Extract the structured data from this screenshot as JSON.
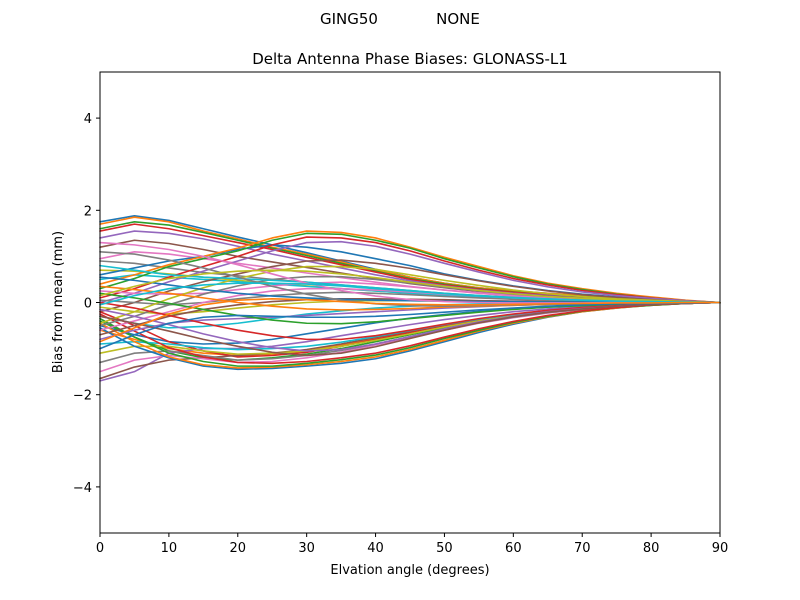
{
  "figure": {
    "suptitle_left": "GING50",
    "suptitle_right": "NONE"
  },
  "chart_data": {
    "type": "line",
    "title": "Delta Antenna Phase Biases: GLONASS-L1",
    "xlabel": "Elvation angle (degrees)",
    "ylabel": "Bias from mean (mm)",
    "xlim": [
      0,
      90
    ],
    "ylim": [
      -5,
      5
    ],
    "xticks": [
      0,
      10,
      20,
      30,
      40,
      50,
      60,
      70,
      80,
      90
    ],
    "yticks": [
      -4,
      -2,
      0,
      2,
      4
    ],
    "ytick_labels": [
      "−4",
      "−2",
      "0",
      "2",
      "4"
    ],
    "grid": false,
    "legend": "none",
    "palette": [
      "#1f77b4",
      "#ff7f0e",
      "#2ca02c",
      "#d62728",
      "#9467bd",
      "#8c564b",
      "#e377c2",
      "#7f7f7f",
      "#bcbd22",
      "#17becf"
    ],
    "x": [
      0,
      5,
      10,
      15,
      20,
      25,
      30,
      35,
      40,
      45,
      50,
      55,
      60,
      65,
      70,
      75,
      80,
      85,
      90
    ],
    "series": [
      {
        "values": [
          1.75,
          1.88,
          1.78,
          1.6,
          1.42,
          1.25,
          1.08,
          0.9,
          0.72,
          0.55,
          0.42,
          0.32,
          0.25,
          0.2,
          0.15,
          0.1,
          0.06,
          0.03,
          0.0
        ]
      },
      {
        "values": [
          1.7,
          1.85,
          1.75,
          1.55,
          1.38,
          1.2,
          1.05,
          0.88,
          0.7,
          0.55,
          0.42,
          0.32,
          0.25,
          0.2,
          0.15,
          0.1,
          0.06,
          0.03,
          0.0
        ]
      },
      {
        "values": [
          1.6,
          1.75,
          1.68,
          1.52,
          1.35,
          1.18,
          1.02,
          0.85,
          0.68,
          0.52,
          0.4,
          0.3,
          0.23,
          0.18,
          0.13,
          0.09,
          0.05,
          0.02,
          0.0
        ]
      },
      {
        "values": [
          1.55,
          1.7,
          1.6,
          1.45,
          1.3,
          1.15,
          0.98,
          0.82,
          0.66,
          0.5,
          0.38,
          0.29,
          0.22,
          0.17,
          0.12,
          0.08,
          0.05,
          0.02,
          0.0
        ]
      },
      {
        "values": [
          1.4,
          1.55,
          1.5,
          1.38,
          1.22,
          1.05,
          0.9,
          0.75,
          0.6,
          0.47,
          0.36,
          0.27,
          0.2,
          0.15,
          0.11,
          0.07,
          0.04,
          0.02,
          0.0
        ]
      },
      {
        "values": [
          1.2,
          1.35,
          1.28,
          1.15,
          1.0,
          0.88,
          0.76,
          0.64,
          0.52,
          0.41,
          0.32,
          0.24,
          0.18,
          0.14,
          0.1,
          0.07,
          0.04,
          0.02,
          0.0
        ]
      },
      {
        "values": [
          0.95,
          1.1,
          1.05,
          0.95,
          0.85,
          0.75,
          0.64,
          0.54,
          0.44,
          0.35,
          0.27,
          0.21,
          0.16,
          0.12,
          0.09,
          0.06,
          0.03,
          0.01,
          0.0
        ]
      },
      {
        "values": [
          0.9,
          0.85,
          0.75,
          0.65,
          0.58,
          0.5,
          0.44,
          0.38,
          0.32,
          0.26,
          0.2,
          0.15,
          0.11,
          0.08,
          0.06,
          0.04,
          0.02,
          0.01,
          0.0
        ]
      },
      {
        "values": [
          0.7,
          0.68,
          0.62,
          0.55,
          0.48,
          0.42,
          0.36,
          0.3,
          0.25,
          0.2,
          0.16,
          0.12,
          0.09,
          0.07,
          0.05,
          0.03,
          0.02,
          0.01,
          0.0
        ]
      },
      {
        "values": [
          0.5,
          0.6,
          0.55,
          0.5,
          0.45,
          0.4,
          0.35,
          0.3,
          0.25,
          0.2,
          0.16,
          0.12,
          0.09,
          0.07,
          0.05,
          0.03,
          0.02,
          0.01,
          0.0
        ]
      },
      {
        "values": [
          0.6,
          0.75,
          0.9,
          1.0,
          1.15,
          1.25,
          1.2,
          1.1,
          0.95,
          0.8,
          0.62,
          0.48,
          0.36,
          0.26,
          0.18,
          0.12,
          0.07,
          0.03,
          0.0
        ]
      },
      {
        "values": [
          0.4,
          0.6,
          0.82,
          1.0,
          1.18,
          1.4,
          1.55,
          1.52,
          1.4,
          1.2,
          0.98,
          0.78,
          0.58,
          0.42,
          0.3,
          0.2,
          0.12,
          0.05,
          0.0
        ]
      },
      {
        "values": [
          0.3,
          0.52,
          0.78,
          0.95,
          1.12,
          1.35,
          1.5,
          1.48,
          1.35,
          1.18,
          0.95,
          0.75,
          0.56,
          0.4,
          0.28,
          0.18,
          0.1,
          0.04,
          0.0
        ]
      },
      {
        "values": [
          0.1,
          0.3,
          0.55,
          0.78,
          1.0,
          1.25,
          1.42,
          1.4,
          1.3,
          1.12,
          0.9,
          0.7,
          0.52,
          0.38,
          0.26,
          0.17,
          0.1,
          0.04,
          0.0
        ]
      },
      {
        "values": [
          0.0,
          0.2,
          0.45,
          0.68,
          0.9,
          1.12,
          1.3,
          1.32,
          1.22,
          1.05,
          0.85,
          0.66,
          0.48,
          0.34,
          0.23,
          0.15,
          0.09,
          0.04,
          0.0
        ]
      },
      {
        "values": [
          -0.2,
          0.0,
          0.25,
          0.45,
          0.62,
          0.78,
          0.9,
          0.92,
          0.85,
          0.74,
          0.6,
          0.47,
          0.35,
          0.25,
          0.17,
          0.11,
          0.06,
          0.02,
          0.0
        ]
      },
      {
        "values": [
          0.25,
          0.2,
          0.18,
          0.2,
          0.28,
          0.36,
          0.42,
          0.44,
          0.4,
          0.34,
          0.27,
          0.2,
          0.14,
          0.1,
          0.07,
          0.04,
          0.02,
          0.01,
          0.0
        ]
      },
      {
        "values": [
          0.05,
          0.0,
          -0.05,
          0.0,
          0.08,
          0.15,
          0.2,
          0.22,
          0.2,
          0.17,
          0.13,
          0.1,
          0.07,
          0.05,
          0.03,
          0.02,
          0.01,
          0.0,
          0.0
        ]
      },
      {
        "values": [
          -0.1,
          -0.2,
          -0.25,
          -0.2,
          -0.12,
          -0.05,
          0.0,
          0.03,
          0.04,
          0.04,
          0.03,
          0.02,
          0.02,
          0.01,
          0.01,
          0.0,
          0.0,
          0.0,
          0.0
        ]
      },
      {
        "values": [
          -0.3,
          -0.45,
          -0.55,
          -0.52,
          -0.45,
          -0.35,
          -0.25,
          -0.18,
          -0.12,
          -0.08,
          -0.05,
          -0.03,
          -0.02,
          -0.01,
          -0.01,
          0.0,
          0.0,
          0.0,
          0.0
        ]
      },
      {
        "values": [
          -0.5,
          -0.7,
          -0.85,
          -0.9,
          -0.88,
          -0.8,
          -0.68,
          -0.56,
          -0.44,
          -0.34,
          -0.26,
          -0.19,
          -0.14,
          -0.1,
          -0.07,
          -0.04,
          -0.02,
          -0.01,
          0.0
        ]
      },
      {
        "values": [
          -0.6,
          -0.8,
          -1.0,
          -1.1,
          -1.15,
          -1.12,
          -1.05,
          -0.92,
          -0.78,
          -0.62,
          -0.48,
          -0.36,
          -0.26,
          -0.18,
          -0.12,
          -0.08,
          -0.05,
          -0.02,
          0.0
        ]
      },
      {
        "values": [
          -0.4,
          -0.75,
          -1.05,
          -1.2,
          -1.25,
          -1.2,
          -1.12,
          -1.0,
          -0.85,
          -0.7,
          -0.55,
          -0.42,
          -0.3,
          -0.21,
          -0.14,
          -0.09,
          -0.05,
          -0.02,
          0.0
        ]
      },
      {
        "values": [
          -0.2,
          -0.5,
          -0.85,
          -1.05,
          -1.18,
          -1.15,
          -1.08,
          -0.95,
          -0.8,
          -0.65,
          -0.5,
          -0.38,
          -0.28,
          -0.2,
          -0.13,
          -0.08,
          -0.05,
          -0.02,
          0.0
        ]
      },
      {
        "values": [
          -1.7,
          -1.5,
          -1.1,
          -1.0,
          -1.0,
          -0.95,
          -0.85,
          -0.72,
          -0.6,
          -0.48,
          -0.37,
          -0.28,
          -0.2,
          -0.14,
          -0.1,
          -0.06,
          -0.03,
          -0.01,
          0.0
        ]
      },
      {
        "values": [
          -1.65,
          -1.4,
          -1.25,
          -1.2,
          -1.15,
          -1.1,
          -1.02,
          -0.9,
          -0.76,
          -0.62,
          -0.48,
          -0.36,
          -0.26,
          -0.18,
          -0.12,
          -0.08,
          -0.04,
          -0.02,
          0.0
        ]
      },
      {
        "values": [
          -1.5,
          -1.25,
          -1.15,
          -1.22,
          -1.3,
          -1.28,
          -1.2,
          -1.08,
          -0.92,
          -0.76,
          -0.6,
          -0.45,
          -0.33,
          -0.23,
          -0.15,
          -0.1,
          -0.05,
          -0.02,
          0.0
        ]
      },
      {
        "values": [
          -1.3,
          -1.1,
          -1.05,
          -1.15,
          -1.25,
          -1.22,
          -1.15,
          -1.04,
          -0.9,
          -0.74,
          -0.58,
          -0.44,
          -0.32,
          -0.22,
          -0.15,
          -0.09,
          -0.05,
          -0.02,
          0.0
        ]
      },
      {
        "values": [
          -1.1,
          -0.95,
          -0.95,
          -1.05,
          -1.12,
          -1.1,
          -1.05,
          -0.95,
          -0.82,
          -0.68,
          -0.53,
          -0.4,
          -0.29,
          -0.2,
          -0.13,
          -0.08,
          -0.04,
          -0.02,
          0.0
        ]
      },
      {
        "values": [
          -0.9,
          -0.85,
          -0.9,
          -0.98,
          -1.02,
          -1.0,
          -0.95,
          -0.86,
          -0.74,
          -0.61,
          -0.48,
          -0.36,
          -0.26,
          -0.18,
          -0.12,
          -0.07,
          -0.04,
          -0.01,
          0.0
        ]
      },
      {
        "values": [
          -0.55,
          -0.95,
          -1.2,
          -1.38,
          -1.45,
          -1.43,
          -1.38,
          -1.32,
          -1.22,
          -1.05,
          -0.85,
          -0.65,
          -0.47,
          -0.32,
          -0.2,
          -0.12,
          -0.06,
          -0.02,
          0.0
        ]
      },
      {
        "values": [
          -0.45,
          -0.85,
          -1.18,
          -1.35,
          -1.42,
          -1.4,
          -1.35,
          -1.28,
          -1.18,
          -1.02,
          -0.82,
          -0.62,
          -0.45,
          -0.31,
          -0.2,
          -0.12,
          -0.06,
          -0.02,
          0.0
        ]
      },
      {
        "values": [
          -0.35,
          -0.75,
          -1.1,
          -1.28,
          -1.38,
          -1.38,
          -1.32,
          -1.24,
          -1.14,
          -0.98,
          -0.78,
          -0.6,
          -0.43,
          -0.3,
          -0.19,
          -0.11,
          -0.06,
          -0.02,
          0.0
        ]
      },
      {
        "values": [
          -0.25,
          -0.62,
          -0.98,
          -1.18,
          -1.3,
          -1.32,
          -1.28,
          -1.2,
          -1.1,
          -0.94,
          -0.75,
          -0.57,
          -0.41,
          -0.28,
          -0.18,
          -0.11,
          -0.05,
          -0.02,
          0.0
        ]
      },
      {
        "values": [
          -0.8,
          -0.6,
          -0.45,
          -0.38,
          -0.35,
          -0.32,
          -0.28,
          -0.24,
          -0.2,
          -0.16,
          -0.12,
          -0.09,
          -0.06,
          -0.04,
          -0.03,
          -0.02,
          -0.01,
          0.0,
          0.0
        ]
      },
      {
        "values": [
          -0.7,
          -0.5,
          -0.3,
          -0.15,
          -0.05,
          0.02,
          0.06,
          0.08,
          0.08,
          0.07,
          0.06,
          0.04,
          0.03,
          0.02,
          0.01,
          0.01,
          0.0,
          0.0,
          0.0
        ]
      },
      {
        "values": [
          -0.6,
          -0.4,
          -0.2,
          0.0,
          0.15,
          0.25,
          0.3,
          0.3,
          0.27,
          0.23,
          0.18,
          0.14,
          0.1,
          0.07,
          0.05,
          0.03,
          0.02,
          0.01,
          0.0
        ]
      },
      {
        "values": [
          -0.5,
          -0.3,
          -0.05,
          0.18,
          0.36,
          0.5,
          0.56,
          0.56,
          0.5,
          0.42,
          0.33,
          0.25,
          0.18,
          0.13,
          0.09,
          0.06,
          0.03,
          0.01,
          0.0
        ]
      },
      {
        "values": [
          -0.45,
          -0.2,
          0.08,
          0.32,
          0.52,
          0.68,
          0.78,
          0.78,
          0.72,
          0.6,
          0.48,
          0.37,
          0.27,
          0.19,
          0.13,
          0.08,
          0.05,
          0.02,
          0.0
        ]
      },
      {
        "values": [
          0.8,
          0.7,
          0.6,
          0.55,
          0.52,
          0.48,
          0.44,
          0.38,
          0.32,
          0.26,
          0.2,
          0.15,
          0.11,
          0.08,
          0.05,
          0.03,
          0.02,
          0.01,
          0.0
        ]
      },
      {
        "values": [
          0.55,
          0.48,
          0.38,
          0.28,
          0.2,
          0.14,
          0.1,
          0.07,
          0.05,
          0.04,
          0.03,
          0.02,
          0.02,
          0.01,
          0.01,
          0.0,
          0.0,
          0.0,
          0.0
        ]
      },
      {
        "values": [
          0.35,
          0.28,
          0.2,
          0.1,
          0.0,
          -0.08,
          -0.14,
          -0.16,
          -0.15,
          -0.13,
          -0.1,
          -0.08,
          -0.06,
          -0.04,
          -0.03,
          -0.02,
          -0.01,
          0.0,
          0.0
        ]
      },
      {
        "values": [
          0.2,
          0.1,
          -0.02,
          -0.15,
          -0.28,
          -0.38,
          -0.45,
          -0.46,
          -0.42,
          -0.35,
          -0.28,
          -0.21,
          -0.15,
          -0.1,
          -0.07,
          -0.04,
          -0.02,
          -0.01,
          0.0
        ]
      },
      {
        "values": [
          0.0,
          -0.12,
          -0.28,
          -0.45,
          -0.6,
          -0.72,
          -0.8,
          -0.8,
          -0.72,
          -0.6,
          -0.47,
          -0.35,
          -0.25,
          -0.17,
          -0.11,
          -0.07,
          -0.04,
          -0.01,
          0.0
        ]
      },
      {
        "values": [
          -0.15,
          -0.3,
          -0.48,
          -0.68,
          -0.85,
          -0.98,
          -1.05,
          -1.02,
          -0.9,
          -0.74,
          -0.57,
          -0.42,
          -0.3,
          -0.2,
          -0.13,
          -0.08,
          -0.04,
          -0.02,
          0.0
        ]
      },
      {
        "values": [
          -0.3,
          -0.45,
          -0.62,
          -0.8,
          -0.95,
          -1.08,
          -1.15,
          -1.1,
          -0.96,
          -0.78,
          -0.6,
          -0.44,
          -0.31,
          -0.21,
          -0.14,
          -0.08,
          -0.04,
          -0.02,
          0.0
        ]
      },
      {
        "values": [
          1.3,
          1.25,
          1.15,
          1.0,
          0.82,
          0.62,
          0.42,
          0.26,
          0.14,
          0.06,
          0.02,
          0.0,
          -0.01,
          -0.01,
          -0.01,
          0.0,
          0.0,
          0.0,
          0.0
        ]
      },
      {
        "values": [
          1.1,
          1.05,
          0.92,
          0.75,
          0.55,
          0.35,
          0.18,
          0.05,
          -0.03,
          -0.07,
          -0.08,
          -0.07,
          -0.05,
          -0.04,
          -0.03,
          -0.02,
          -0.01,
          0.0,
          0.0
        ]
      },
      {
        "values": [
          0.15,
          0.35,
          0.52,
          0.62,
          0.68,
          0.7,
          0.68,
          0.62,
          0.54,
          0.44,
          0.35,
          0.26,
          0.19,
          0.13,
          0.09,
          0.06,
          0.03,
          0.01,
          0.0
        ]
      },
      {
        "values": [
          -0.05,
          0.15,
          0.3,
          0.38,
          0.42,
          0.42,
          0.4,
          0.36,
          0.3,
          0.25,
          0.19,
          0.14,
          0.1,
          0.07,
          0.05,
          0.03,
          0.02,
          0.01,
          0.0
        ]
      },
      {
        "values": [
          -1.0,
          -0.7,
          -0.45,
          -0.32,
          -0.28,
          -0.3,
          -0.32,
          -0.32,
          -0.3,
          -0.26,
          -0.21,
          -0.16,
          -0.12,
          -0.08,
          -0.05,
          -0.03,
          -0.02,
          -0.01,
          0.0
        ]
      },
      {
        "values": [
          -0.85,
          -0.55,
          -0.25,
          -0.05,
          0.05,
          0.08,
          0.06,
          0.02,
          -0.02,
          -0.04,
          -0.05,
          -0.05,
          -0.04,
          -0.03,
          -0.02,
          -0.01,
          -0.01,
          0.0,
          0.0
        ]
      }
    ]
  }
}
